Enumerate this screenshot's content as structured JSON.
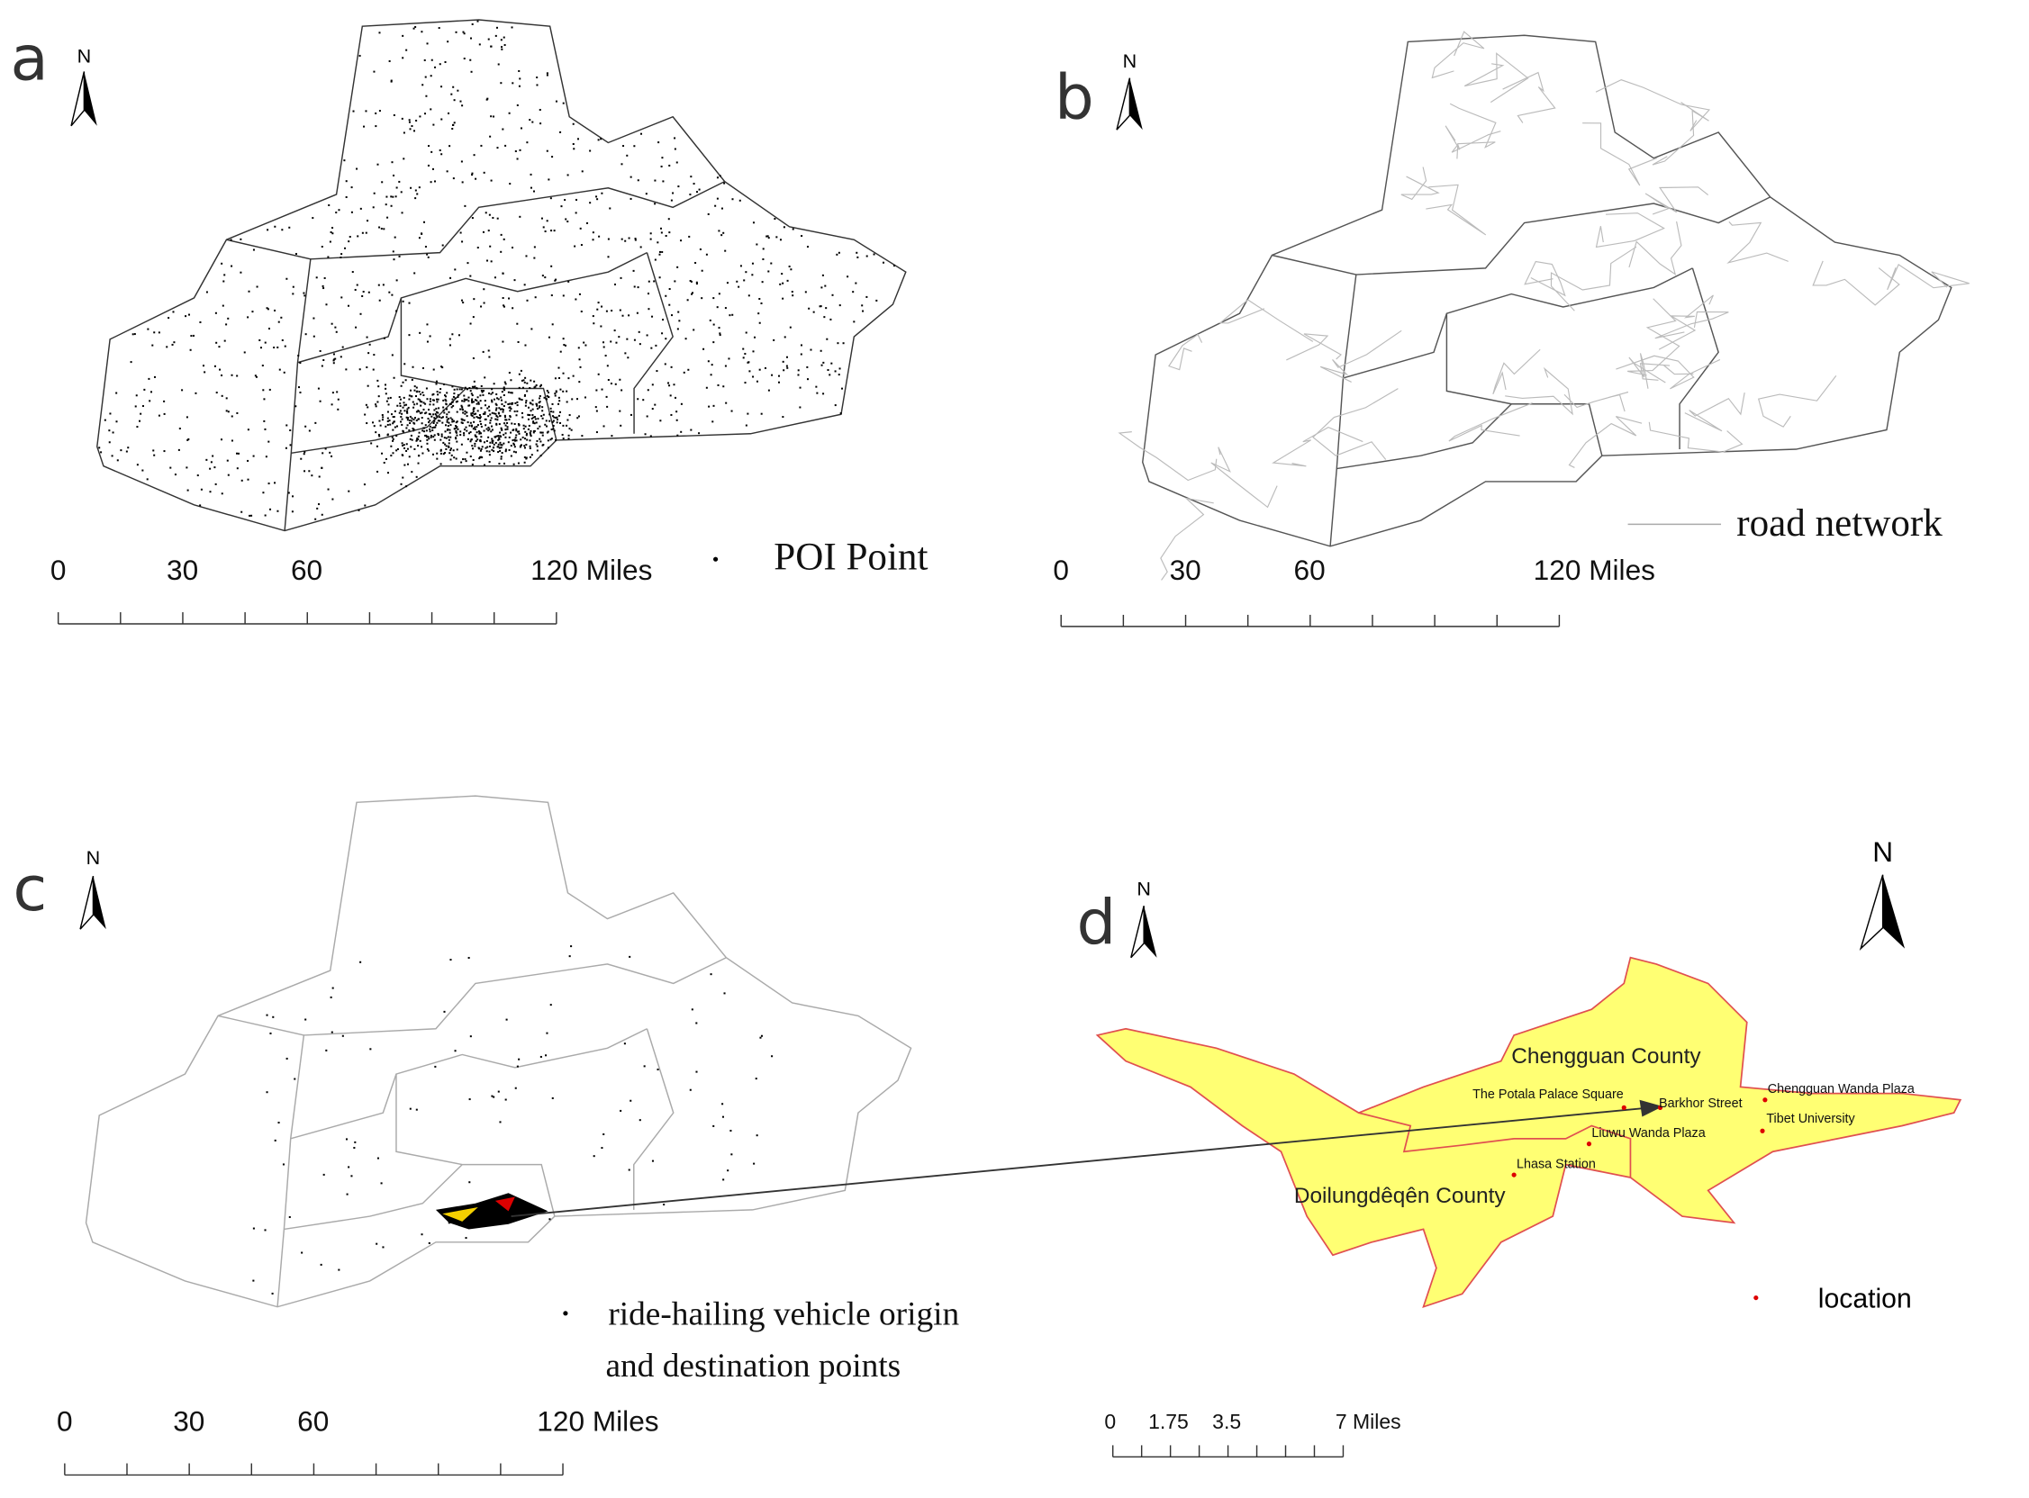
{
  "panels": [
    {
      "letter": "a",
      "north": "N",
      "legend": "POI Point",
      "scale": [
        "0",
        "30",
        "60",
        "120 Miles"
      ]
    },
    {
      "letter": "b",
      "north": "N",
      "legend": "road network",
      "scale": [
        "0",
        "30",
        "60",
        "120 Miles"
      ]
    },
    {
      "letter": "c",
      "north": "N",
      "legend": [
        "ride-hailing vehicle origin",
        "and destination points"
      ],
      "scale": [
        "0",
        "30",
        "60",
        "120 Miles"
      ]
    },
    {
      "letter": "d",
      "north": "N",
      "north_large": "N",
      "legend": "location",
      "scale": [
        "0",
        "1.75",
        "3.5",
        "7 Miles"
      ],
      "counties": [
        "Chengguan County",
        "Doilungdêqên County"
      ],
      "places": [
        "The Potala Palace Square",
        "Barkhor Street",
        "Chengguan Wanda Plaza",
        "Tibet University",
        "Liuwu Wanda Plaza",
        "Lhasa Station"
      ]
    }
  ]
}
